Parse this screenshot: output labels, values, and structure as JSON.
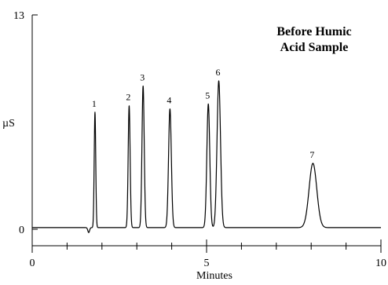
{
  "chart_data": {
    "type": "line",
    "title_lines": [
      "Before Humic",
      "Acid Sample"
    ],
    "xlabel": "Minutes",
    "ylabel": "µS",
    "xlim": [
      0,
      10
    ],
    "ylim": [
      0,
      13
    ],
    "x_ticks": [
      0,
      5,
      10
    ],
    "x_minor_ticks": [
      1,
      2,
      3,
      4,
      6,
      7,
      8,
      9
    ],
    "y_tick_labels": [
      "0",
      "13"
    ],
    "y_ticks": [
      0,
      13
    ],
    "baseline": 0.1,
    "grid": false,
    "legend": "none",
    "series": [
      {
        "peaks": [
          {
            "label": "1",
            "x": 1.8,
            "y": 7.1,
            "sigma": 0.022
          },
          {
            "label": "2",
            "x": 2.78,
            "y": 7.5,
            "sigma": 0.028
          },
          {
            "label": "3",
            "x": 3.18,
            "y": 8.7,
            "sigma": 0.032
          },
          {
            "label": "4",
            "x": 3.95,
            "y": 7.3,
            "sigma": 0.04
          },
          {
            "label": "5",
            "x": 5.05,
            "y": 7.6,
            "sigma": 0.042
          },
          {
            "label": "6",
            "x": 5.35,
            "y": 9.0,
            "sigma": 0.05
          },
          {
            "label": "7",
            "x": 8.05,
            "y": 4.0,
            "sigma": 0.11
          }
        ]
      }
    ],
    "colors": {
      "line": "#000000",
      "axis": "#000000"
    }
  }
}
